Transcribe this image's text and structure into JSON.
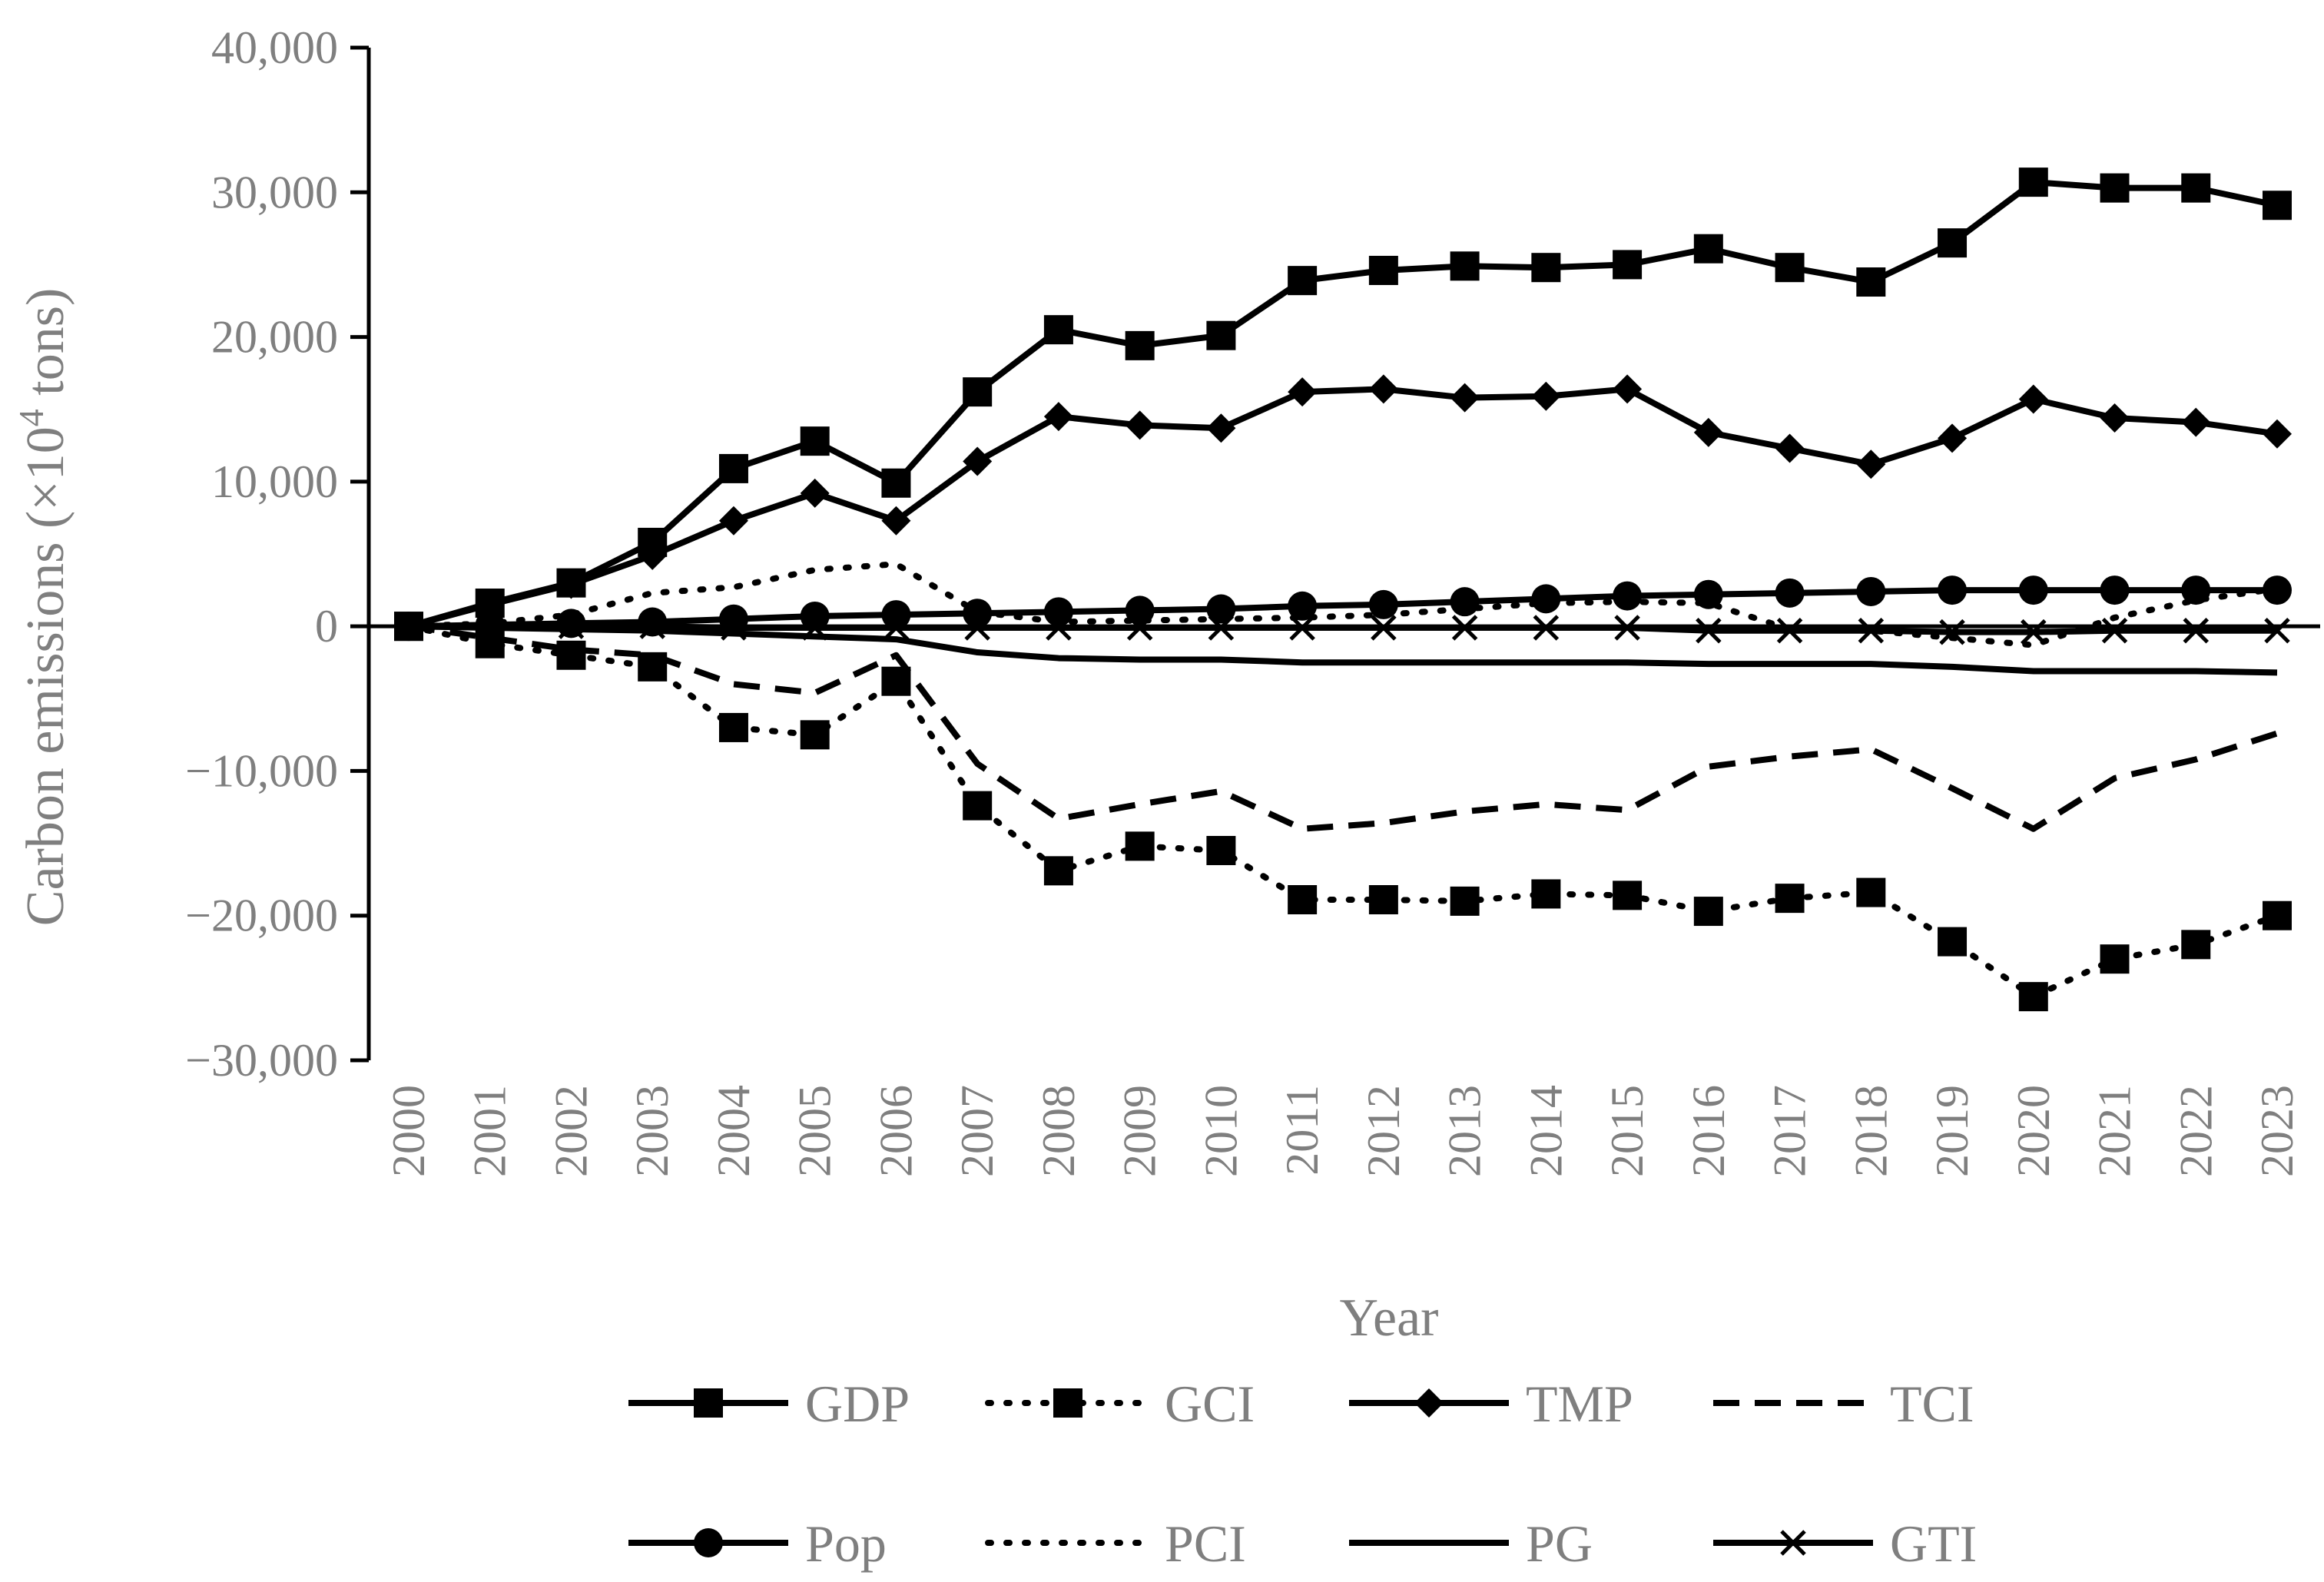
{
  "chart_data": {
    "type": "line",
    "title": "",
    "xlabel": "Year",
    "ylabel_main": "Carbon emissions (×10",
    "ylabel_sup": "4",
    "ylabel_tail": " tons)",
    "ylim": [
      -30000,
      40000
    ],
    "yticks": [
      40000,
      30000,
      20000,
      10000,
      0,
      -10000,
      -20000,
      -30000
    ],
    "ytick_labels": [
      "40,000",
      "30,000",
      "20,000",
      "10,000",
      "0",
      "−10,000",
      "−20,000",
      "−30,000"
    ],
    "categories": [
      "2000",
      "2001",
      "2002",
      "2003",
      "2004",
      "2005",
      "2006",
      "2007",
      "2008",
      "2009",
      "2010",
      "2011",
      "2012",
      "2013",
      "2014",
      "2015",
      "2016",
      "2017",
      "2018",
      "2019",
      "2020",
      "2021",
      "2022",
      "2023"
    ],
    "legend_position": "bottom",
    "grid": false,
    "line_color": "#000000",
    "text_color": "#7f7f7f",
    "series": [
      {
        "name": "GDP",
        "dash": "solid",
        "marker": "square",
        "values": [
          0,
          1600,
          3000,
          5800,
          10900,
          12800,
          9900,
          16200,
          20500,
          19400,
          20100,
          23900,
          24600,
          24900,
          24800,
          25000,
          26100,
          24800,
          23800,
          26500,
          30700,
          30300,
          30300,
          29100
        ]
      },
      {
        "name": "GCI",
        "dash": "dot",
        "marker": "square",
        "values": [
          0,
          -1200,
          -2000,
          -2800,
          -7000,
          -7500,
          -3800,
          -12400,
          -16900,
          -15200,
          -15500,
          -18900,
          -18900,
          -19000,
          -18500,
          -18600,
          -19700,
          -18800,
          -18400,
          -21800,
          -25600,
          -23000,
          -22000,
          -20000
        ]
      },
      {
        "name": "TMP",
        "dash": "solid",
        "marker": "diamond",
        "values": [
          0,
          1500,
          2900,
          4900,
          7300,
          9200,
          7300,
          11400,
          14500,
          13900,
          13700,
          16200,
          16400,
          15800,
          15900,
          16400,
          13400,
          12300,
          11200,
          13000,
          15700,
          14400,
          14100,
          13300
        ]
      },
      {
        "name": "TCI",
        "dash": "dash",
        "marker": "none",
        "values": [
          0,
          -800,
          -1600,
          -2000,
          -4000,
          -4600,
          -2000,
          -9500,
          -13300,
          -12300,
          -11400,
          -14000,
          -13600,
          -12800,
          -12300,
          -12700,
          -9700,
          -9000,
          -8500,
          -11200,
          -14000,
          -10500,
          -9200,
          -7400
        ]
      },
      {
        "name": "Pop",
        "dash": "solid",
        "marker": "circle",
        "values": [
          0,
          100,
          200,
          300,
          500,
          700,
          800,
          900,
          1000,
          1100,
          1200,
          1400,
          1500,
          1700,
          1900,
          2100,
          2200,
          2300,
          2400,
          2500,
          2500,
          2500,
          2500,
          2500
        ]
      },
      {
        "name": "PCI",
        "dash": "dot",
        "marker": "none",
        "values": [
          0,
          200,
          800,
          2300,
          2700,
          3900,
          4300,
          1000,
          300,
          400,
          500,
          600,
          800,
          1200,
          1600,
          1700,
          1600,
          -200,
          -300,
          -800,
          -1300,
          600,
          1800,
          2600
        ]
      },
      {
        "name": "PG",
        "dash": "solid",
        "marker": "none",
        "values": [
          0,
          -100,
          -200,
          -300,
          -500,
          -700,
          -900,
          -1800,
          -2200,
          -2300,
          -2300,
          -2500,
          -2500,
          -2500,
          -2500,
          -2500,
          -2600,
          -2600,
          -2600,
          -2800,
          -3100,
          -3100,
          -3100,
          -3200
        ]
      },
      {
        "name": "GTI",
        "dash": "solid",
        "marker": "x",
        "values": [
          0,
          0,
          0,
          0,
          -100,
          -100,
          -100,
          -100,
          -100,
          -100,
          -100,
          -100,
          -100,
          -100,
          -100,
          -100,
          -300,
          -300,
          -300,
          -400,
          -400,
          -300,
          -300,
          -300
        ]
      }
    ]
  }
}
